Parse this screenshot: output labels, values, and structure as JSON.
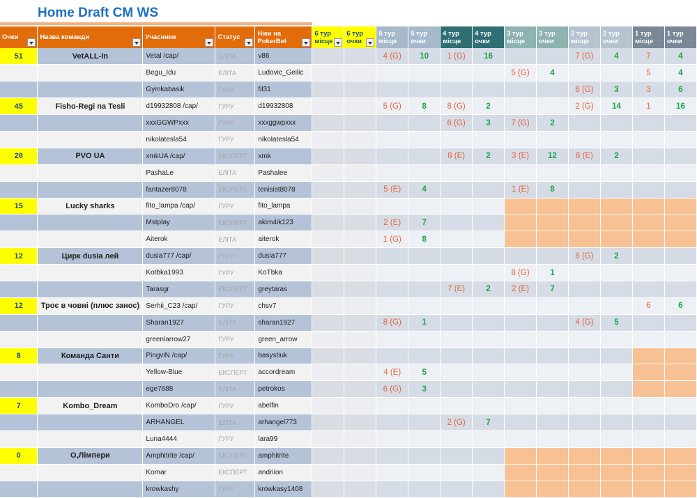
{
  "title": "Home Draft CM WS",
  "headers": {
    "points": "Очки",
    "team": "Назва команди",
    "members": "Учасники",
    "status": "Статус",
    "nick": "Ніки на PokerBet",
    "tours": [
      {
        "place": "6 тур місце",
        "points": "6 тур очки"
      },
      {
        "place": "5 тур місце",
        "points": "5 тур очки"
      },
      {
        "place": "4 тур місце",
        "points": "4 тур очки"
      },
      {
        "place": "3 тур місце",
        "points": "3 тур очки"
      },
      {
        "place": "2 тур місце",
        "points": "2 тур очки"
      },
      {
        "place": "1 тур місце",
        "points": "1 тур очки"
      }
    ]
  },
  "colors": {
    "header_orange": "#e26b0a",
    "points_yellow": "#ffff00",
    "place_text": "#e8643a",
    "points_text": "#1aa64a",
    "row_blue": "#b4c3d8",
    "peach": "#f8c194"
  },
  "rows": [
    {
      "points": "51",
      "team": "VetALL-In",
      "member": "Vetal /cap/",
      "status": "ЕЛІТА",
      "nick": "v86",
      "t5p": "4 (G)",
      "t5o": "10",
      "t4p": "1 (G)",
      "t4o": "16",
      "t3p": "",
      "t3o": "",
      "t2p": "7 (G)",
      "t2o": "4",
      "t1p": "7",
      "t1o": "4"
    },
    {
      "points": "",
      "team": "",
      "member": "Begu_Idu",
      "status": "ЕЛІТА",
      "nick": "Ludovic_Geilic",
      "t5p": "",
      "t5o": "",
      "t4p": "",
      "t4o": "",
      "t3p": "5 (G)",
      "t3o": "4",
      "t2p": "",
      "t2o": "",
      "t1p": "5",
      "t1o": "4"
    },
    {
      "points": "",
      "team": "",
      "member": "Gymkabasik",
      "status": "ГУРУ",
      "nick": "fil31",
      "t5p": "",
      "t5o": "",
      "t4p": "",
      "t4o": "",
      "t3p": "",
      "t3o": "",
      "t2p": "6 (G)",
      "t2o": "3",
      "t1p": "3",
      "t1o": "6"
    },
    {
      "points": "45",
      "team": "Fisho-Regi na Tesli",
      "member": "d19932808 /cap/",
      "status": "ГУРУ",
      "nick": "d19932808",
      "t5p": "5 (G)",
      "t5o": "8",
      "t4p": "8 (G)",
      "t4o": "2",
      "t3p": "",
      "t3o": "",
      "t2p": "2 (G)",
      "t2o": "14",
      "t1p": "1",
      "t1o": "16"
    },
    {
      "points": "",
      "team": "",
      "member": "xxxGGWPxxx",
      "status": "ГУРУ",
      "nick": "xxxggwpxxx",
      "t5p": "",
      "t5o": "",
      "t4p": "6 (G)",
      "t4o": "3",
      "t3p": "7 (G)",
      "t3o": "2",
      "t2p": "",
      "t2o": "",
      "t1p": "",
      "t1o": ""
    },
    {
      "points": "",
      "team": "",
      "member": "nikolatesla54",
      "status": "ГУРУ",
      "nick": "nikolatesla54",
      "t5p": "",
      "t5o": "",
      "t4p": "",
      "t4o": "",
      "t3p": "",
      "t3o": "",
      "t2p": "",
      "t2o": "",
      "t1p": "",
      "t1o": ""
    },
    {
      "points": "28",
      "team": "PVO UA",
      "member": "xmkUA /cap/",
      "status": "ЕКСПЕРТ",
      "nick": "xmk",
      "t5p": "",
      "t5o": "",
      "t4p": "8 (E)",
      "t4o": "2",
      "t3p": "3 (E)",
      "t3o": "12",
      "t2p": "8 (E)",
      "t2o": "2",
      "t1p": "",
      "t1o": ""
    },
    {
      "points": "",
      "team": "",
      "member": "PashaLe",
      "status": "ЕЛІТА",
      "nick": "Pashalee",
      "t5p": "",
      "t5o": "",
      "t4p": "",
      "t4o": "",
      "t3p": "",
      "t3o": "",
      "t2p": "",
      "t2o": "",
      "t1p": "",
      "t1o": ""
    },
    {
      "points": "",
      "team": "",
      "member": "fantazer8078",
      "status": "ЕКСПЕРТ",
      "nick": "tenisist8078",
      "t5p": "5 (E)",
      "t5o": "4",
      "t4p": "",
      "t4o": "",
      "t3p": "1 (E)",
      "t3o": "8",
      "t2p": "",
      "t2o": "",
      "t1p": "",
      "t1o": ""
    },
    {
      "points": "15",
      "team": "Lucky sharks",
      "member": "fito_lampa /cap/",
      "status": "ГУРУ",
      "nick": "fito_lampa",
      "t5p": "",
      "t5o": "",
      "t4p": "",
      "t4o": "",
      "t3p": "",
      "t3o": "",
      "t2p": "",
      "t2o": "",
      "t1p": "",
      "t1o": "",
      "peach": [
        3,
        4,
        5
      ]
    },
    {
      "points": "",
      "team": "",
      "member": "Mstplay",
      "status": "ЕКСПЕРТ",
      "nick": "akim4ik123",
      "t5p": "2 (E)",
      "t5o": "7",
      "t4p": "",
      "t4o": "",
      "t3p": "",
      "t3o": "",
      "t2p": "",
      "t2o": "",
      "t1p": "",
      "t1o": "",
      "peach": [
        3,
        4,
        5
      ]
    },
    {
      "points": "",
      "team": "",
      "member": "Aiterok",
      "status": "ЕЛІТА",
      "nick": "aiterok",
      "t5p": "1 (G)",
      "t5o": "8",
      "t4p": "",
      "t4o": "",
      "t3p": "",
      "t3o": "",
      "t2p": "",
      "t2o": "",
      "t1p": "",
      "t1o": "",
      "peach": [
        3,
        4,
        5
      ]
    },
    {
      "points": "12",
      "team": "Цирк dusia лей",
      "member": "dusia777 /cap/",
      "status": "ГУРУ",
      "nick": "dusia777",
      "t5p": "",
      "t5o": "",
      "t4p": "",
      "t4o": "",
      "t3p": "",
      "t3o": "",
      "t2p": "8 (G)",
      "t2o": "2",
      "t1p": "",
      "t1o": ""
    },
    {
      "points": "",
      "team": "",
      "member": "Kotbka1993",
      "status": "ГУРУ",
      "nick": "KoTbka",
      "t5p": "",
      "t5o": "",
      "t4p": "",
      "t4o": "",
      "t3p": "8 (G)",
      "t3o": "1",
      "t2p": "",
      "t2o": "",
      "t1p": "",
      "t1o": ""
    },
    {
      "points": "",
      "team": "",
      "member": "Tarasgr",
      "status": "ЕКСПЕРТ",
      "nick": "greytaras",
      "t5p": "",
      "t5o": "",
      "t4p": "7 (E)",
      "t4o": "2",
      "t3p": "2 (E)",
      "t3o": "7",
      "t2p": "",
      "t2o": "",
      "t1p": "",
      "t1o": ""
    },
    {
      "points": "12",
      "team": "Троє в човні (плюс занос)",
      "member": "Serhii_C23 /cap/",
      "status": "ГУРУ",
      "nick": "chsv7",
      "t5p": "",
      "t5o": "",
      "t4p": "",
      "t4o": "",
      "t3p": "",
      "t3o": "",
      "t2p": "",
      "t2o": "",
      "t1p": "6",
      "t1o": "6"
    },
    {
      "points": "",
      "team": "",
      "member": "Sharan1927",
      "status": "ЕЛІТА",
      "nick": "sharan1927",
      "t5p": "8 (G)",
      "t5o": "1",
      "t4p": "",
      "t4o": "",
      "t3p": "",
      "t3o": "",
      "t2p": "4 (G)",
      "t2o": "5",
      "t1p": "",
      "t1o": ""
    },
    {
      "points": "",
      "team": "",
      "member": "greenlarrow27",
      "status": "ГУРУ",
      "nick": "green_arrow",
      "t5p": "",
      "t5o": "",
      "t4p": "",
      "t4o": "",
      "t3p": "",
      "t3o": "",
      "t2p": "",
      "t2o": "",
      "t1p": "",
      "t1o": ""
    },
    {
      "points": "8",
      "team": "Команда Санти",
      "member": "PingviN /cap/",
      "status": "ГУРУ",
      "nick": "basystiuk",
      "t5p": "",
      "t5o": "",
      "t4p": "",
      "t4o": "",
      "t3p": "",
      "t3o": "",
      "t2p": "",
      "t2o": "",
      "t1p": "",
      "t1o": "",
      "peach": [
        5
      ]
    },
    {
      "points": "",
      "team": "",
      "member": "Yellow-Blue",
      "status": "ЕКСПЕРТ",
      "nick": "accordream",
      "t5p": "4 (E)",
      "t5o": "5",
      "t4p": "",
      "t4o": "",
      "t3p": "",
      "t3o": "",
      "t2p": "",
      "t2o": "",
      "t1p": "",
      "t1o": "",
      "peach": [
        5
      ]
    },
    {
      "points": "",
      "team": "",
      "member": "ege7688",
      "status": "ЕЛІТА",
      "nick": "petrokos",
      "t5p": "6 (G)",
      "t5o": "3",
      "t4p": "",
      "t4o": "",
      "t3p": "",
      "t3o": "",
      "t2p": "",
      "t2o": "",
      "t1p": "",
      "t1o": "",
      "peach": [
        5
      ]
    },
    {
      "points": "7",
      "team": "Kombo_Dream",
      "member": "KomboDro /cap/",
      "status": "ГУРУ",
      "nick": "abelfin",
      "t5p": "",
      "t5o": "",
      "t4p": "",
      "t4o": "",
      "t3p": "",
      "t3o": "",
      "t2p": "",
      "t2o": "",
      "t1p": "",
      "t1o": ""
    },
    {
      "points": "",
      "team": "",
      "member": "ARHANGEL",
      "status": "ЕЛІТА",
      "nick": "arhangel773",
      "t5p": "",
      "t5o": "",
      "t4p": "2 (G)",
      "t4o": "7",
      "t3p": "",
      "t3o": "",
      "t2p": "",
      "t2o": "",
      "t1p": "",
      "t1o": ""
    },
    {
      "points": "",
      "team": "",
      "member": "Luna4444",
      "status": "ГУРУ",
      "nick": "lara99",
      "t5p": "",
      "t5o": "",
      "t4p": "",
      "t4o": "",
      "t3p": "",
      "t3o": "",
      "t2p": "",
      "t2o": "",
      "t1p": "",
      "t1o": ""
    },
    {
      "points": "0",
      "team": "О,Лімпери",
      "member": "Amphitrite /cap/",
      "status": "ЕКСПЕРТ",
      "nick": "amphitrite",
      "t5p": "",
      "t5o": "",
      "t4p": "",
      "t4o": "",
      "t3p": "",
      "t3o": "",
      "t2p": "",
      "t2o": "",
      "t1p": "",
      "t1o": "",
      "peach": [
        3,
        4,
        5
      ]
    },
    {
      "points": "",
      "team": "",
      "member": "Komar",
      "status": "ЕКСПЕРТ",
      "nick": "andriion",
      "t5p": "",
      "t5o": "",
      "t4p": "",
      "t4o": "",
      "t3p": "",
      "t3o": "",
      "t2p": "",
      "t2o": "",
      "t1p": "",
      "t1o": "",
      "peach": [
        3,
        4,
        5
      ]
    },
    {
      "points": "",
      "team": "",
      "member": "krowkashy",
      "status": "ГУРУ",
      "nick": "krowkasy1408",
      "t5p": "",
      "t5o": "",
      "t4p": "",
      "t4o": "",
      "t3p": "",
      "t3o": "",
      "t2p": "",
      "t2o": "",
      "t1p": "",
      "t1o": "",
      "peach": [
        3,
        4,
        5
      ]
    }
  ]
}
